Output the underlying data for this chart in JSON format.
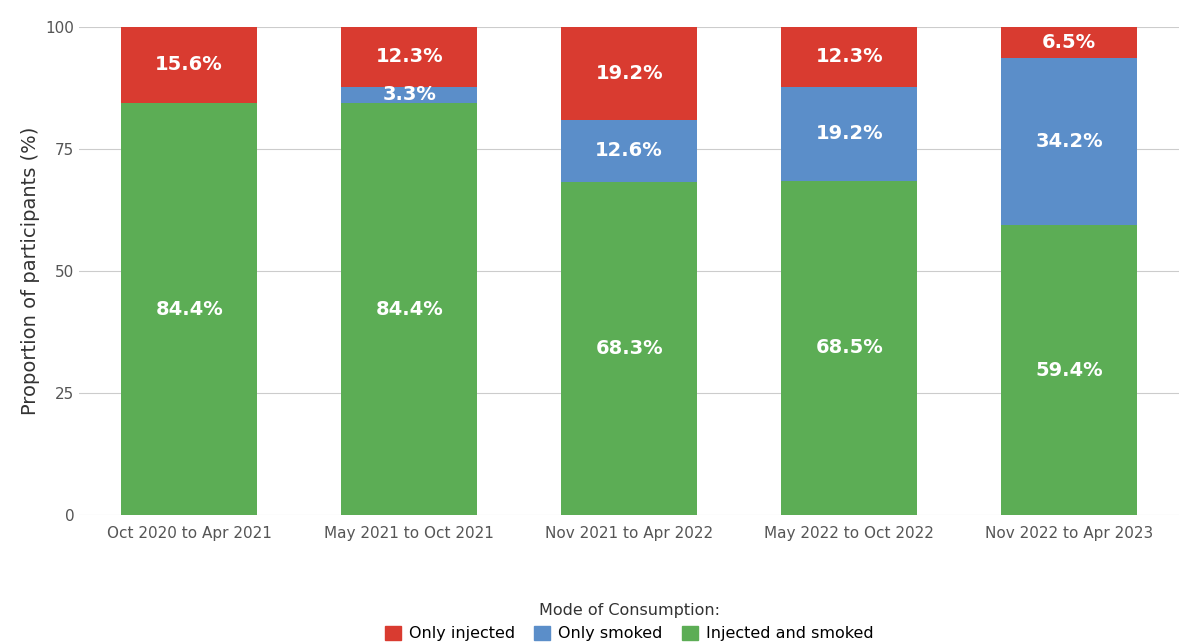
{
  "categories": [
    "Oct 2020 to Apr 2021",
    "May 2021 to Oct 2021",
    "Nov 2021 to Apr 2022",
    "May 2022 to Oct 2022",
    "Nov 2022 to Apr 2023"
  ],
  "only_injected": [
    15.6,
    12.3,
    19.2,
    12.3,
    6.5
  ],
  "only_smoked": [
    0.0,
    3.3,
    12.6,
    19.2,
    34.2
  ],
  "injected_and_smoked": [
    84.4,
    84.4,
    68.3,
    68.5,
    59.4
  ],
  "color_injected": "#D93B30",
  "color_smoked": "#5B8EC9",
  "color_both": "#5CAD55",
  "ylabel": "Proportion of participants (%)",
  "yticks": [
    0,
    25,
    50,
    75,
    100
  ],
  "bar_width": 0.62,
  "background_color": "#FFFFFF",
  "legend_title": "Mode of Consumption:",
  "legend_labels": [
    "Only injected",
    "Only smoked",
    "Injected and smoked"
  ],
  "label_fontsize": 14,
  "tick_fontsize": 11,
  "legend_fontsize": 11.5
}
